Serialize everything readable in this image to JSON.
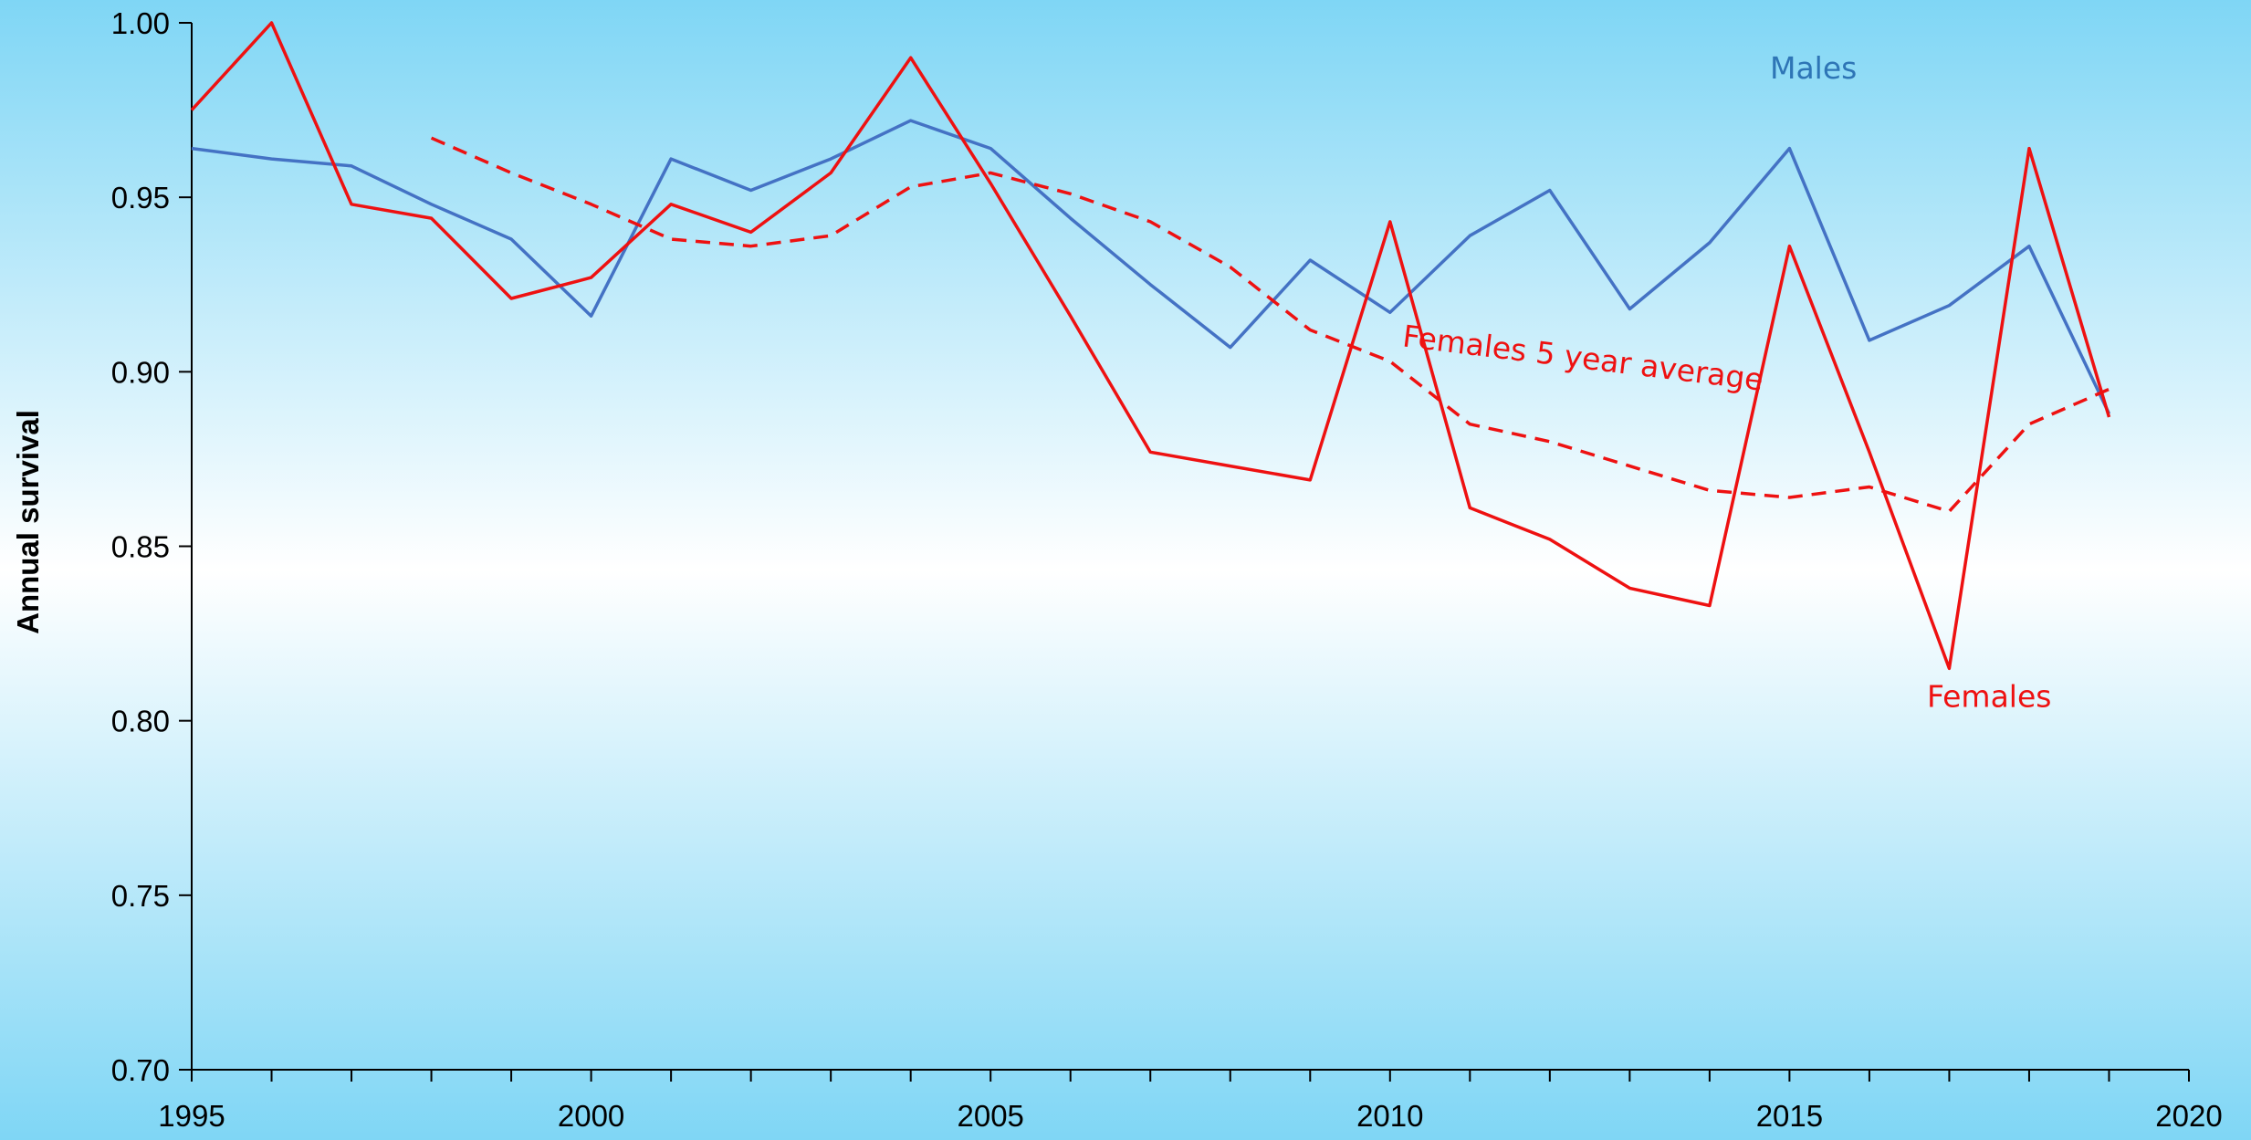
{
  "chart_data": {
    "type": "line",
    "title": "",
    "xlabel": "",
    "ylabel": "Annual survival",
    "xlim": [
      1995,
      2020
    ],
    "ylim": [
      0.7,
      1.0
    ],
    "x_ticks": [
      "1995",
      "2000",
      "2005",
      "2010",
      "2015",
      "2020"
    ],
    "y_ticks": [
      "0.70",
      "0.75",
      "0.80",
      "0.85",
      "0.90",
      "0.95",
      "1.00"
    ],
    "background": {
      "top": "#7fd6f5",
      "middle": "#ffffff",
      "bottom": "#7fd6f5"
    },
    "grid": false,
    "legend": "none",
    "series": [
      {
        "name": "Males",
        "color": "#4472c4",
        "dash": "solid",
        "x": [
          1995,
          1996,
          1997,
          1998,
          1999,
          2000,
          2001,
          2002,
          2003,
          2004,
          2005,
          2006,
          2007,
          2008,
          2009,
          2010,
          2011,
          2012,
          2013,
          2014,
          2015,
          2016,
          2017,
          2018,
          2019
        ],
        "y": [
          0.964,
          0.961,
          0.959,
          0.948,
          0.938,
          0.916,
          0.961,
          0.952,
          0.961,
          0.972,
          0.964,
          0.944,
          0.925,
          0.907,
          0.932,
          0.917,
          0.939,
          0.952,
          0.918,
          0.937,
          0.964,
          0.909,
          0.919,
          0.936,
          0.888
        ]
      },
      {
        "name": "Females",
        "color": "#ee1111",
        "dash": "solid",
        "x": [
          1995,
          1996,
          1997,
          1998,
          1999,
          2000,
          2001,
          2002,
          2003,
          2004,
          2005,
          2006,
          2007,
          2008,
          2009,
          2010,
          2011,
          2012,
          2013,
          2014,
          2015,
          2016,
          2017,
          2018,
          2019
        ],
        "y": [
          0.975,
          1.0,
          0.948,
          0.944,
          0.921,
          0.927,
          0.948,
          0.94,
          0.957,
          0.99,
          0.954,
          0.916,
          0.877,
          0.873,
          0.869,
          0.943,
          0.861,
          0.852,
          0.838,
          0.833,
          0.936,
          0.877,
          0.815,
          0.964,
          0.887
        ]
      },
      {
        "name": "Females 5 year average",
        "color": "#ee1111",
        "dash": "dashed",
        "x": [
          1998,
          1999,
          2000,
          2001,
          2002,
          2003,
          2004,
          2005,
          2006,
          2007,
          2008,
          2009,
          2010,
          2011,
          2012,
          2013,
          2014,
          2015,
          2016,
          2017,
          2018,
          2019
        ],
        "y": [
          0.967,
          0.957,
          0.948,
          0.938,
          0.936,
          0.939,
          0.953,
          0.957,
          0.951,
          0.943,
          0.93,
          0.912,
          0.903,
          0.885,
          0.88,
          0.873,
          0.866,
          0.864,
          0.867,
          0.86,
          0.885,
          0.895
        ]
      }
    ],
    "annotations": [
      {
        "text": "Males",
        "color": "#2e75b6",
        "x": 2015.3,
        "y": 0.984,
        "rotate": 0
      },
      {
        "text": "Females 5 year average",
        "color": "#ee1111",
        "x": 2012.4,
        "y": 0.901,
        "rotate": 7
      },
      {
        "text": "Females",
        "color": "#ee1111",
        "x": 2017.5,
        "y": 0.804,
        "rotate": 0
      }
    ]
  }
}
